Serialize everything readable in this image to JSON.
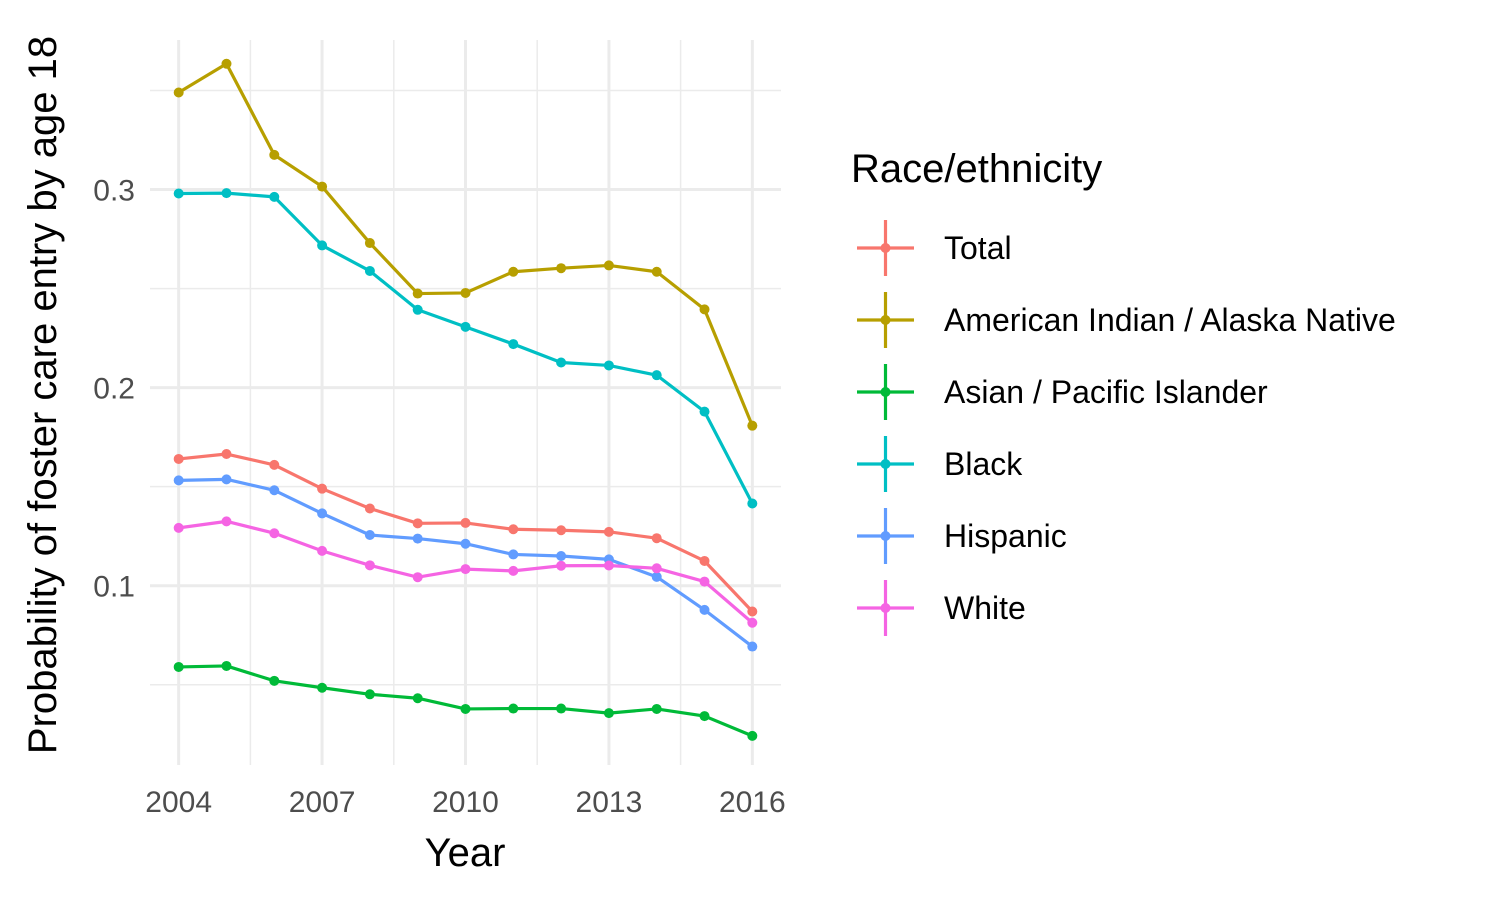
{
  "chart_data": {
    "type": "line",
    "xlabel": "Year",
    "ylabel": "Probability of foster care entry by age 18",
    "x": [
      2004,
      2005,
      2006,
      2007,
      2008,
      2009,
      2010,
      2011,
      2012,
      2013,
      2014,
      2015,
      2016
    ],
    "x_ticks": [
      2004,
      2007,
      2010,
      2013,
      2016
    ],
    "x_tick_labels": [
      "2004",
      "2007",
      "2010",
      "2013",
      "2016"
    ],
    "y_ticks": [
      0.1,
      0.2,
      0.3
    ],
    "y_tick_labels": [
      "0.1",
      "0.2",
      "0.3"
    ],
    "xlim": [
      2003.4,
      2016.6
    ],
    "ylim": [
      0.0095,
      0.3755
    ],
    "grid": true,
    "legend_title": "Race/ethnicity",
    "legend_position": "right",
    "series": [
      {
        "name": "Total",
        "color": "#F8766D",
        "values": [
          0.164,
          0.1665,
          0.161,
          0.149,
          0.139,
          0.1315,
          0.1317,
          0.1285,
          0.128,
          0.1272,
          0.124,
          0.1125,
          0.087
        ]
      },
      {
        "name": "American Indian / Alaska Native",
        "color": "#B79F00",
        "values": [
          0.349,
          0.3635,
          0.3175,
          0.3015,
          0.273,
          0.2475,
          0.2478,
          0.2585,
          0.2603,
          0.2617,
          0.2585,
          0.2395,
          0.1808
        ]
      },
      {
        "name": "Asian / Pacific Islander",
        "color": "#00BA38",
        "values": [
          0.059,
          0.0595,
          0.052,
          0.0485,
          0.0452,
          0.0432,
          0.0378,
          0.038,
          0.038,
          0.0357,
          0.0378,
          0.0342,
          0.0242
        ]
      },
      {
        "name": "Black",
        "color": "#00BFC4",
        "values": [
          0.298,
          0.2982,
          0.2963,
          0.2718,
          0.2589,
          0.2393,
          0.2307,
          0.222,
          0.2127,
          0.2112,
          0.2063,
          0.1879,
          0.1415
        ]
      },
      {
        "name": "Hispanic",
        "color": "#619CFF",
        "values": [
          0.1532,
          0.1537,
          0.1482,
          0.1365,
          0.1256,
          0.1238,
          0.1212,
          0.1158,
          0.115,
          0.1133,
          0.1045,
          0.0878,
          0.0693
        ]
      },
      {
        "name": "White",
        "color": "#F564E3",
        "values": [
          0.1292,
          0.1325,
          0.1265,
          0.1176,
          0.1103,
          0.1043,
          0.1084,
          0.1075,
          0.1101,
          0.1102,
          0.1088,
          0.1021,
          0.0813
        ]
      }
    ]
  }
}
